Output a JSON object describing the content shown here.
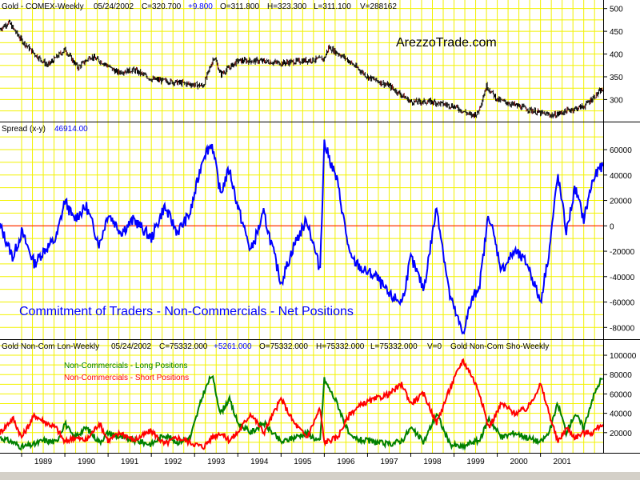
{
  "colors": {
    "grid": "#f2f200",
    "plot_bg": "#ffffff",
    "ohlc": "#000000",
    "ohlc_accent": "#800000",
    "spread_line": "#0000ff",
    "zero_line": "#ff0000",
    "long_line": "#008000",
    "short_line": "#ff0000",
    "header_blue": "#0000ff",
    "header_black": "#000000"
  },
  "panels": {
    "price": {
      "header": {
        "name": "Gold - COMEX-Weekly",
        "date": "05/24/2002",
        "close": "C=320.700",
        "change": "+9.800",
        "open": "O=311.800",
        "high": "H=323.300",
        "low": "L=311.100",
        "volume": "V=288162"
      },
      "watermark": "ArezzoTrade.com"
    },
    "spread": {
      "header": {
        "name": "Spread (x-y)",
        "value": "46914.00"
      },
      "annotation": "Commitment of Traders - Non-Commercials - Net Positions"
    },
    "cot": {
      "header": {
        "name": "Gold Non-Com Lon-Weekly",
        "date": "05/24/2002",
        "close": "C=75332.000",
        "change": "+5261.000",
        "open": "O=75332.000",
        "high": "H=75332.000",
        "low": "L=75332.000",
        "volume": "V=0",
        "second": "Gold Non-Com Sho-Weekly"
      },
      "legend_long": "Non-Commercials - Long Positions",
      "legend_short": "Non-Commercials - Short Positions"
    }
  },
  "x_axis": {
    "labels": [
      "1989",
      "1990",
      "1991",
      "1992",
      "1993",
      "1994",
      "1995",
      "1996",
      "1997",
      "1998",
      "1999",
      "2000",
      "2001"
    ]
  },
  "chart_data": [
    {
      "type": "line",
      "title": "Gold - COMEX-Weekly",
      "note": "weekly OHLC bars",
      "x": [
        1988.5,
        1988.7,
        1989.0,
        1989.3,
        1989.6,
        1990.0,
        1990.3,
        1990.6,
        1990.9,
        1991.2,
        1991.6,
        1992.0,
        1992.4,
        1992.8,
        1993.2,
        1993.45,
        1993.6,
        1994.0,
        1994.5,
        1995.0,
        1995.5,
        1996.0,
        1996.1,
        1996.5,
        1997.0,
        1997.5,
        1998.0,
        1998.5,
        1999.0,
        1999.4,
        1999.55,
        1999.75,
        2000.0,
        2000.5,
        2001.0,
        2001.3,
        2001.6,
        2002.0,
        2002.4
      ],
      "series": [
        {
          "name": "Gold - COMEX-Weekly",
          "values": [
            455,
            470,
            430,
            400,
            375,
            410,
            370,
            395,
            380,
            360,
            365,
            345,
            340,
            335,
            330,
            395,
            355,
            385,
            385,
            380,
            385,
            390,
            415,
            390,
            350,
            330,
            295,
            295,
            285,
            265,
            270,
            330,
            300,
            285,
            270,
            265,
            275,
            285,
            320
          ]
        }
      ],
      "yticks": [
        300,
        350,
        400,
        450,
        500
      ],
      "ylim": [
        255,
        510
      ],
      "xlim": [
        1988.5,
        2002.45
      ]
    },
    {
      "type": "line",
      "title": "Spread (x-y)",
      "annotation": "Commitment of Traders - Non-Commercials - Net Positions",
      "x": [
        1988.5,
        1988.8,
        1989.0,
        1989.3,
        1989.5,
        1989.8,
        1990.0,
        1990.2,
        1990.5,
        1990.8,
        1991.0,
        1991.3,
        1991.6,
        1992.0,
        1992.3,
        1992.6,
        1992.9,
        1993.2,
        1993.4,
        1993.6,
        1993.8,
        1994.0,
        1994.3,
        1994.6,
        1995.0,
        1995.3,
        1995.6,
        1995.9,
        1996.0,
        1996.3,
        1996.6,
        1996.9,
        1997.2,
        1997.5,
        1997.8,
        1998.0,
        1998.3,
        1998.6,
        1998.9,
        1999.2,
        1999.4,
        1999.6,
        1999.8,
        2000.1,
        2000.4,
        2000.7,
        2001.0,
        2001.2,
        2001.4,
        2001.6,
        2001.8,
        2002.0,
        2002.2,
        2002.4
      ],
      "series": [
        {
          "name": "Spread (x-y)",
          "values": [
            0,
            -25000,
            -5000,
            -30000,
            -20000,
            -10000,
            20000,
            5000,
            15000,
            -15000,
            10000,
            -5000,
            5000,
            -10000,
            15000,
            -5000,
            10000,
            55000,
            65000,
            25000,
            45000,
            15000,
            -20000,
            10000,
            -45000,
            -15000,
            5000,
            -35000,
            65000,
            35000,
            -25000,
            -35000,
            -40000,
            -55000,
            -60000,
            -25000,
            -50000,
            15000,
            -55000,
            -85000,
            -60000,
            -45000,
            10000,
            -35000,
            -20000,
            -30000,
            -60000,
            -20000,
            40000,
            -5000,
            30000,
            5000,
            35000,
            46914
          ]
        }
      ],
      "zero_line": 0,
      "yticks": [
        -80000,
        -60000,
        -40000,
        -20000,
        0,
        20000,
        40000,
        60000
      ],
      "ylim": [
        -88000,
        72000
      ],
      "xlim": [
        1988.5,
        2002.45
      ]
    },
    {
      "type": "line",
      "title": "Gold Non-Com Lon-Weekly / Gold Non-Com Sho-Weekly",
      "x": [
        1988.5,
        1988.8,
        1989.0,
        1989.3,
        1989.5,
        1989.8,
        1990.0,
        1990.2,
        1990.5,
        1990.8,
        1991.0,
        1991.3,
        1991.6,
        1992.0,
        1992.3,
        1992.6,
        1992.9,
        1993.2,
        1993.4,
        1993.6,
        1993.8,
        1994.0,
        1994.3,
        1994.6,
        1995.0,
        1995.3,
        1995.6,
        1995.9,
        1996.0,
        1996.3,
        1996.6,
        1996.9,
        1997.2,
        1997.5,
        1997.8,
        1998.0,
        1998.3,
        1998.6,
        1998.9,
        1999.2,
        1999.4,
        1999.6,
        1999.8,
        2000.1,
        2000.4,
        2000.7,
        2001.0,
        2001.2,
        2001.4,
        2001.6,
        2001.8,
        2002.0,
        2002.2,
        2002.4
      ],
      "series": [
        {
          "name": "Non-Commercials - Long Positions",
          "values": [
            15000,
            10000,
            5000,
            8000,
            12000,
            10000,
            30000,
            15000,
            25000,
            10000,
            20000,
            15000,
            12000,
            8000,
            18000,
            10000,
            15000,
            60000,
            80000,
            40000,
            55000,
            30000,
            20000,
            30000,
            10000,
            15000,
            20000,
            10000,
            75000,
            50000,
            15000,
            12000,
            10000,
            8000,
            12000,
            25000,
            10000,
            40000,
            8000,
            5000,
            10000,
            12000,
            35000,
            15000,
            20000,
            15000,
            10000,
            20000,
            50000,
            20000,
            40000,
            25000,
            55000,
            75332
          ]
        },
        {
          "name": "Non-Commercials - Short Positions",
          "values": [
            20000,
            35000,
            15000,
            38000,
            32000,
            25000,
            10000,
            15000,
            12000,
            30000,
            12000,
            20000,
            12000,
            22000,
            8000,
            15000,
            10000,
            5000,
            15000,
            20000,
            12000,
            20000,
            40000,
            20000,
            55000,
            30000,
            15000,
            45000,
            10000,
            15000,
            40000,
            50000,
            55000,
            60000,
            70000,
            50000,
            60000,
            30000,
            65000,
            95000,
            80000,
            60000,
            25000,
            50000,
            40000,
            45000,
            70000,
            40000,
            10000,
            25000,
            15000,
            20000,
            20000,
            28500
          ]
        }
      ],
      "yticks": [
        20000,
        40000,
        60000,
        80000,
        100000
      ],
      "ylim": [
        0,
        105000
      ],
      "xlim": [
        1988.5,
        2002.45
      ]
    }
  ]
}
